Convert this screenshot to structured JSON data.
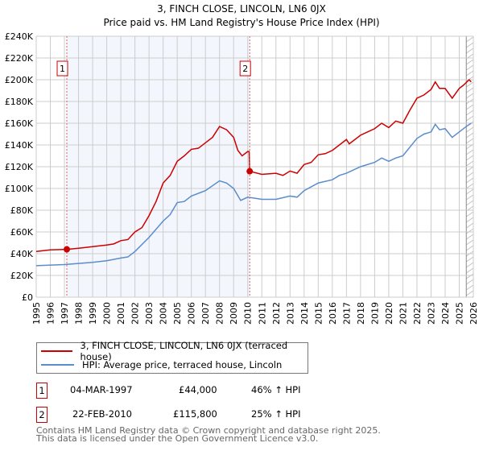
{
  "chart_data": {
    "type": "line",
    "title": "3, FINCH CLOSE, LINCOLN, LN6 0JX",
    "subtitle": "Price paid vs. HM Land Registry's House Price Index (HPI)",
    "xlim": [
      1995,
      2026
    ],
    "ylim": [
      0,
      240000
    ],
    "xticks": [
      "1995",
      "1996",
      "1997",
      "1998",
      "1999",
      "2000",
      "2001",
      "2002",
      "2003",
      "2004",
      "2005",
      "2006",
      "2007",
      "2008",
      "2009",
      "2010",
      "2011",
      "2012",
      "2013",
      "2014",
      "2015",
      "2016",
      "2017",
      "2018",
      "2019",
      "2020",
      "2021",
      "2022",
      "2023",
      "2024",
      "2025",
      "2026"
    ],
    "yticks": [
      "£0",
      "£20K",
      "£40K",
      "£60K",
      "£80K",
      "£100K",
      "£120K",
      "£140K",
      "£160K",
      "£180K",
      "£200K",
      "£220K",
      "£240K"
    ],
    "grid": true,
    "shaded_range": [
      1997.17,
      2010.14
    ],
    "future_hatch_from": 2025.5,
    "series": [
      {
        "name": "3, FINCH CLOSE, LINCOLN, LN6 0JX (terraced house)",
        "color": "#cc0000",
        "x": [
          1995,
          1996,
          1997.17,
          1998,
          1999,
          2000,
          2000.5,
          2001,
          2001.5,
          2002,
          2002.5,
          2003,
          2003.5,
          2004,
          2004.5,
          2005,
          2005.5,
          2006,
          2006.5,
          2007,
          2007.5,
          2008,
          2008.5,
          2009,
          2009.3,
          2009.6,
          2010,
          2010.1,
          2010.14,
          2011,
          2012,
          2012.5,
          2013,
          2013.5,
          2014,
          2014.5,
          2015,
          2015.5,
          2016,
          2016.5,
          2017,
          2017.2,
          2018,
          2018.5,
          2019,
          2019.5,
          2020,
          2020.5,
          2021,
          2021.5,
          2022,
          2022.5,
          2023,
          2023.3,
          2023.6,
          2024,
          2024.5,
          2025,
          2025.3,
          2025.7,
          2025.85
        ],
        "y": [
          42000,
          43500,
          44000,
          45000,
          46500,
          48000,
          49000,
          52000,
          53000,
          60000,
          64000,
          75000,
          88000,
          105000,
          112000,
          125000,
          130000,
          136000,
          137000,
          142000,
          147000,
          157000,
          154000,
          147000,
          135000,
          130000,
          134000,
          134000,
          115800,
          113000,
          114000,
          112000,
          116000,
          114000,
          122000,
          124000,
          131000,
          132000,
          135000,
          140000,
          145000,
          141000,
          149000,
          152000,
          155000,
          160000,
          156000,
          162000,
          160000,
          172000,
          183000,
          186000,
          191000,
          198000,
          192000,
          192000,
          183000,
          192000,
          195000,
          200000,
          198000
        ]
      },
      {
        "name": "HPI: Average price, terraced house, Lincoln",
        "color": "#5b8ccc",
        "x": [
          1995,
          1997,
          1998,
          1999,
          2000,
          2001,
          2001.5,
          2002,
          2003,
          2004,
          2004.5,
          2005,
          2005.5,
          2006,
          2007,
          2008,
          2008.5,
          2009,
          2009.5,
          2010,
          2011,
          2012,
          2013,
          2013.5,
          2014,
          2015,
          2016,
          2016.5,
          2017,
          2018,
          2019,
          2019.5,
          2020,
          2020.5,
          2021,
          2021.5,
          2022,
          2022.5,
          2023,
          2023.3,
          2023.6,
          2024,
          2024.5,
          2025,
          2025.5,
          2025.85
        ],
        "y": [
          29000,
          30000,
          31000,
          32000,
          33500,
          36000,
          37000,
          42000,
          55000,
          70000,
          76000,
          87000,
          88000,
          93000,
          98000,
          107000,
          105000,
          100000,
          89000,
          92000,
          90000,
          90000,
          93000,
          92000,
          98000,
          105000,
          108000,
          112000,
          114000,
          120000,
          124000,
          128000,
          125000,
          128000,
          130000,
          138000,
          146000,
          150000,
          152000,
          159000,
          154000,
          155000,
          147000,
          152000,
          157000,
          160000
        ]
      }
    ],
    "sales": [
      {
        "label": "1",
        "date": "04-MAR-1997",
        "x": 1997.17,
        "price": "£44,000",
        "value": 44000,
        "hpi": "46% ↑ HPI"
      },
      {
        "label": "2",
        "date": "22-FEB-2010",
        "x": 2010.14,
        "price": "£115,800",
        "value": 115800,
        "hpi": "25% ↑ HPI"
      }
    ]
  },
  "footer": {
    "line1": "Contains HM Land Registry data © Crown copyright and database right 2025.",
    "line2": "This data is licensed under the Open Government Licence v3.0."
  }
}
